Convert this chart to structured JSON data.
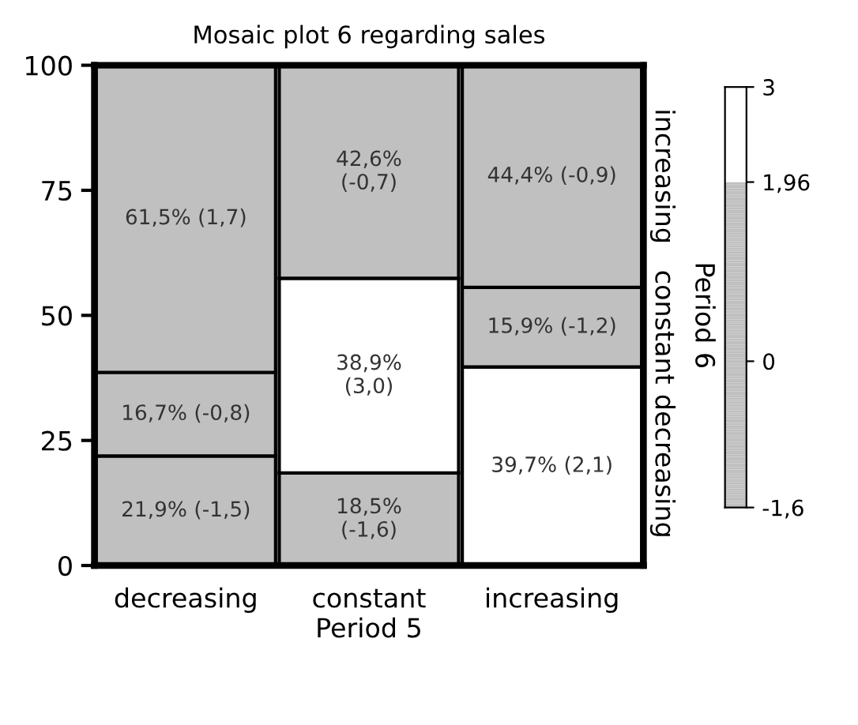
{
  "chart_data": {
    "type": "bar",
    "title": "Mosaic plot 6 regarding sales",
    "xlabel": "Period 5",
    "y2label": "Period 6",
    "categories": [
      "decreasing",
      "constant",
      "increasing"
    ],
    "stacked": true,
    "ylim": [
      0,
      100
    ],
    "yticks": [
      0,
      25,
      50,
      75,
      100
    ],
    "grid": false,
    "legend": false,
    "series": [
      {
        "name": "decreasing",
        "values": [
          21.9,
          18.5,
          39.7
        ],
        "colors": [
          "#c0c0c0",
          "#c0c0c0",
          "#ffffff"
        ],
        "value_labels": [
          "21,9% (-1,5)",
          "18,5%\n(-1,6)",
          "39,7% (2,1)"
        ]
      },
      {
        "name": "constant",
        "values": [
          16.7,
          38.9,
          15.9
        ],
        "colors": [
          "#c0c0c0",
          "#ffffff",
          "#c0c0c0"
        ],
        "value_labels": [
          "16,7% (-0,8)",
          "38,9%\n(3,0)",
          "15,9% (-1,2)"
        ]
      },
      {
        "name": "increasing",
        "values": [
          61.5,
          42.6,
          44.4
        ],
        "colors": [
          "#c0c0c0",
          "#c0c0c0",
          "#c0c0c0"
        ],
        "value_labels": [
          "61,5% (1,7)",
          "42,6%\n(-0,7)",
          "44,4% (-0,9)"
        ]
      }
    ],
    "clim": [
      -1.6,
      3
    ],
    "cticks": [
      {
        "value": -1.6,
        "label": "-1,6"
      },
      0,
      {
        "value": 1.96,
        "label": "1,96"
      },
      3
    ]
  }
}
